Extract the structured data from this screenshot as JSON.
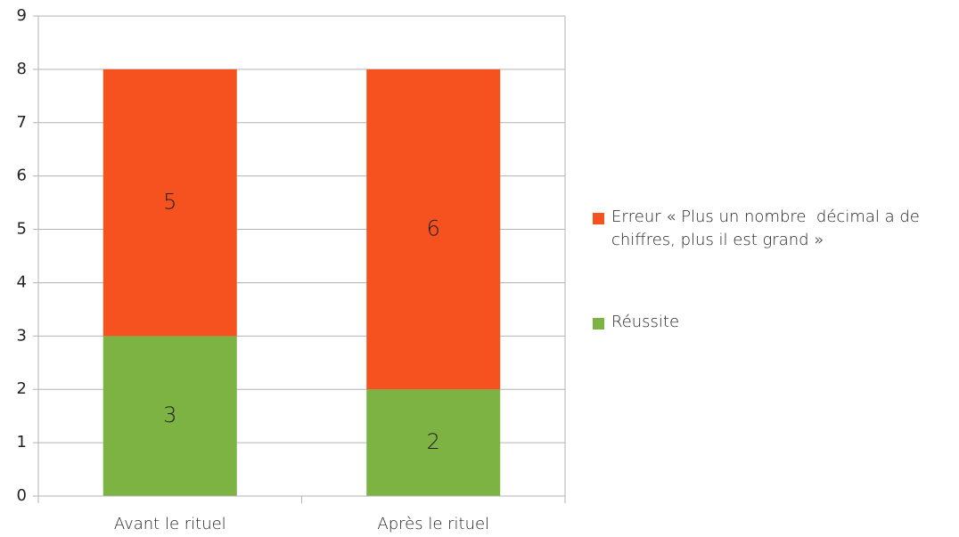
{
  "chart_data": {
    "type": "stacked_bar",
    "categories": [
      "Avant le rituel",
      "Après le rituel"
    ],
    "series": [
      {
        "name": "Réussite",
        "color": "#7db343",
        "values": [
          3,
          2
        ]
      },
      {
        "name": "Erreur « Plus un nombre  décimal a de chiffres, plus il est grand »",
        "color": "#f5521f",
        "values": [
          5,
          6
        ]
      }
    ],
    "ylim": [
      0,
      9
    ],
    "yticks": [
      0,
      1,
      2,
      3,
      4,
      5,
      6,
      7,
      8,
      9
    ],
    "grid": true,
    "legend": "right",
    "data_labels": true
  }
}
